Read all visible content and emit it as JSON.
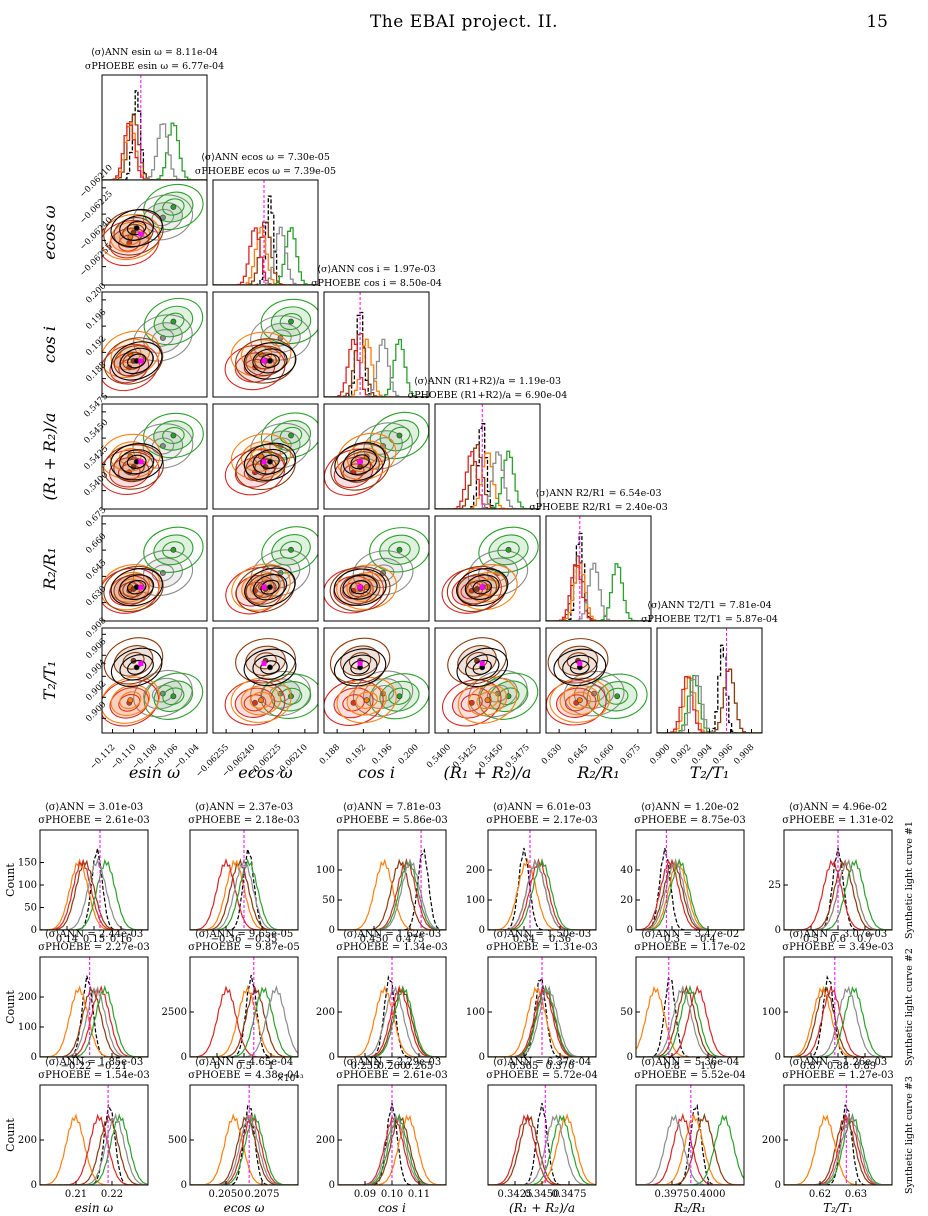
{
  "header": {
    "title": "The EBAI project. II.",
    "page_number": "15"
  },
  "colors": {
    "black": "#000000",
    "brown": "#8b3a0e",
    "orange": "#ff7f0e",
    "red": "#d62728",
    "green": "#2ca02c",
    "lightgreen": "#7fbf6a",
    "gray": "#8c8c8c",
    "magenta": "#ff00ff"
  },
  "chart_data": [
    {
      "type": "corner",
      "parameters": [
        "esin ω",
        "ecos ω",
        "cos i",
        "(R₁ + R₂)/a",
        "R₂/R₁",
        "T₂/T₁"
      ],
      "axis_labels": [
        "esin ω",
        "ecos ω",
        "cos i",
        "(R₁ + R₂)/a",
        "R₂/R₁",
        "T₂/T₁"
      ],
      "ranges": [
        [
          -0.113,
          -0.103
        ],
        [
          -0.0627,
          -0.062
        ],
        [
          0.186,
          0.202
        ],
        [
          0.539,
          0.549
        ],
        [
          0.623,
          0.682
        ],
        [
          0.9,
          0.908
        ]
      ],
      "ticks": [
        [
          "−0.112",
          "−0.110",
          "−0.108",
          "−0.106",
          "−0.104"
        ],
        [
          "−0.06255",
          "−0.06240",
          "−0.06225",
          "−0.06210"
        ],
        [
          "0.188",
          "0.192",
          "0.196",
          "0.200"
        ],
        [
          "0.5400",
          "0.5425",
          "0.5450",
          "0.5475"
        ],
        [
          "0.630",
          "0.645",
          "0.660",
          "0.675"
        ],
        [
          "0.900",
          "0.902",
          "0.904",
          "0.906",
          "0.908"
        ]
      ],
      "diag_stats": [
        {
          "ann_label": "⟨σ⟩ANN esin ω =",
          "ann": "8.11e-04",
          "phoebe_label": "σPHOEBE esin ω =",
          "phoebe": "6.77e-04"
        },
        {
          "ann_label": "⟨σ⟩ANN ecos ω =",
          "ann": "7.30e-05",
          "phoebe_label": "σPHOEBE ecos ω =",
          "phoebe": "7.39e-05"
        },
        {
          "ann_label": "⟨σ⟩ANN cos i =",
          "ann": "1.97e-03",
          "phoebe_label": "σPHOEBE cos i =",
          "phoebe": "8.50e-04"
        },
        {
          "ann_label": "⟨σ⟩ANN (R1+R2)/a =",
          "ann": "1.19e-03",
          "phoebe_label": "σPHOEBE (R1+R2)/a =",
          "phoebe": "6.90e-04"
        },
        {
          "ann_label": "⟨σ⟩ANN R2/R1 =",
          "ann": "6.54e-03",
          "phoebe_label": "σPHOEBE R2/R1 =",
          "phoebe": "2.40e-03"
        },
        {
          "ann_label": "⟨σ⟩ANN T2/T1 =",
          "ann": "7.81e-04",
          "phoebe_label": "σPHOEBE T2/T1 =",
          "phoebe": "5.87e-04"
        }
      ],
      "series": [
        {
          "color": "black",
          "style": "dashed",
          "centers": [
            -0.1097,
            -0.06232,
            0.1915,
            0.5435,
            0.642,
            0.905
          ]
        },
        {
          "color": "brown",
          "centers": [
            -0.11,
            -0.06235,
            0.1915,
            0.543,
            0.641,
            0.9055
          ]
        },
        {
          "color": "orange",
          "centers": [
            -0.1103,
            -0.06238,
            0.1925,
            0.544,
            0.642,
            0.9025
          ]
        },
        {
          "color": "red",
          "centers": [
            -0.1104,
            -0.06242,
            0.1905,
            0.5425,
            0.64,
            0.9023
          ]
        },
        {
          "color": "green",
          "centers": [
            -0.1062,
            -0.06218,
            0.1975,
            0.546,
            0.663,
            0.9028
          ]
        },
        {
          "color": "gray",
          "centers": [
            -0.1072,
            -0.06225,
            0.195,
            0.545,
            0.65,
            0.903
          ]
        }
      ],
      "truth": [
        -0.1093,
        -0.06236,
        0.1915,
        0.5435,
        0.642,
        0.9053
      ]
    },
    {
      "type": "histogram-grid",
      "col_labels": [
        "esin ω",
        "ecos ω",
        "cos i",
        "(R₁ + R₂)/a",
        "R₂/R₁",
        "T₂/T₁"
      ],
      "ylabel": "Count",
      "rows": [
        {
          "side_label": "Synthetic light curve #1",
          "panels": [
            {
              "ann": "3.01e-03",
              "phoebe": "2.61e-03",
              "xlim": [
                0.128,
                0.164
              ],
              "xticks": [
                "0.14",
                "0.15",
                "0.16"
              ],
              "ylim": [
                0,
                190
              ],
              "yticks": [
                "0",
                "50",
                "100",
                "150"
              ],
              "truth": 0.148,
              "centers": [
                0.147,
                0.143,
                0.141,
                0.142,
                0.15,
                0.147
              ]
            },
            {
              "ann": "2.37e-03",
              "phoebe": "2.18e-03",
              "xlim": [
                -0.366,
                -0.342
              ],
              "xticks": [
                "−0.36",
                "−0.35"
              ],
              "ylim": [
                0,
                240
              ],
              "yticks": [],
              "truth": -0.354,
              "centers": [
                -0.353,
                -0.355,
                -0.356,
                -0.358,
                -0.353,
                -0.354
              ]
            },
            {
              "ann": "7.81e-03",
              "phoebe": "5.86e-03",
              "xlim": [
                0.436,
                0.488
              ],
              "xticks": [
                "0.450",
                "0.475"
              ],
              "ylim": [
                0,
                105
              ],
              "yticks": [
                "0",
                "50",
                "100"
              ],
              "truth": 0.476,
              "centers": [
                0.477,
                0.466,
                0.458,
                0.469,
                0.47,
                0.471
              ]
            },
            {
              "ann": "6.01e-03",
              "phoebe": "2.17e-03",
              "xlim": [
                0.336,
                0.372
              ],
              "xticks": [
                "0.34",
                "0.36"
              ],
              "ylim": [
                0,
                240
              ],
              "yticks": [
                "0",
                "100",
                "200"
              ],
              "truth": 0.35,
              "centers": [
                0.348,
                0.352,
                0.349,
                0.353,
                0.354,
                0.352
              ]
            },
            {
              "ann": "1.20e-02",
              "phoebe": "8.75e-03",
              "xlim": [
                0.29,
                0.45
              ],
              "xticks": [
                "0.3",
                "0.4"
              ],
              "ylim": [
                0,
                60
              ],
              "yticks": [
                "0",
                "20",
                "40"
              ],
              "truth": 0.335,
              "centers": [
                0.333,
                0.345,
                0.352,
                0.34,
                0.355,
                0.348
              ]
            },
            {
              "ann": "4.96e-02",
              "phoebe": "1.31e-02",
              "xlim": [
                0.43,
                0.72
              ],
              "xticks": [
                "0.5",
                "0.6",
                "0.7"
              ],
              "ylim": [
                0,
                40
              ],
              "yticks": [
                "0",
                "25"
              ],
              "truth": 0.575,
              "centers": [
                0.575,
                0.59,
                0.6,
                0.56,
                0.62,
                0.6
              ]
            }
          ]
        },
        {
          "side_label": "Synthetic light curve #2",
          "panels": [
            {
              "ann": "2.44e-03",
              "phoebe": "2.27e-03",
              "xlim": [
                -0.229,
                -0.204
              ],
              "xticks": [
                "−0.22",
                "−0.21"
              ],
              "ylim": [
                0,
                230
              ],
              "yticks": [
                "0",
                "100",
                "200"
              ],
              "truth": -0.2175,
              "centers": [
                -0.218,
                -0.217,
                -0.22,
                -0.215,
                -0.214,
                -0.216
              ]
            },
            {
              "ann": "9.65e-05",
              "phoebe": "9.87e-05",
              "xlim": [
                -0.0001,
                0.00122
              ],
              "xticks": [
                "0",
                "0.5",
                "1"
              ],
              "xfactor": "×10⁻³",
              "ylim": [
                0,
                3700
              ],
              "yticks": [
                "0",
                "2500"
              ],
              "truth": 0.00068,
              "centers": [
                0.00065,
                0.0007,
                0.0006,
                0.00035,
                0.0008,
                0.00095
              ]
            },
            {
              "ann": "1.62e-03",
              "phoebe": "1.34e-03",
              "xlim": [
                0.2545,
                0.2685
              ],
              "xticks": [
                "0.255",
                "0.260",
                "0.265"
              ],
              "ylim": [
                0,
                300
              ],
              "yticks": [
                "0",
                "200"
              ],
              "truth": 0.2615,
              "centers": [
                0.2612,
                0.2628,
                0.2605,
                0.2625,
                0.263,
                0.2618
              ]
            },
            {
              "ann": "1.50e-03",
              "phoebe": "1.31e-03",
              "xlim": [
                0.3605,
                0.3745
              ],
              "xticks": [
                "0.365",
                "0.370"
              ],
              "ylim": [
                0,
                150
              ],
              "yticks": [
                "0",
                "100"
              ],
              "truth": 0.3675,
              "centers": [
                0.3673,
                0.3679,
                0.3668,
                0.3677,
                0.368,
                0.3683
              ]
            },
            {
              "ann": "3.47e-02",
              "phoebe": "1.17e-02",
              "xlim": [
                0.74,
                1.02
              ],
              "xticks": [
                "0.8",
                "1.0"
              ],
              "ylim": [
                0,
                60
              ],
              "yticks": [
                "0",
                "50"
              ],
              "truth": 0.825,
              "centers": [
                0.828,
                0.87,
                0.79,
                0.9,
                0.88,
                0.86
              ]
            },
            {
              "ann": "3.07e-03",
              "phoebe": "3.49e-03",
              "xlim": [
                0.864,
                0.898
              ],
              "xticks": [
                "0.87",
                "0.88",
                "0.89"
              ],
              "ylim": [
                0,
                150
              ],
              "yticks": [
                "0",
                "100"
              ],
              "truth": 0.88,
              "centers": [
                0.878,
                0.877,
                0.876,
                0.879,
                0.886,
                0.884
              ]
            }
          ]
        },
        {
          "side_label": "Synthetic light curve #3",
          "panels": [
            {
              "ann": "1.85e-03",
              "phoebe": "1.54e-03",
              "xlim": [
                0.2045,
                0.2275
              ],
              "xticks": [
                "0.21",
                "0.22"
              ],
              "ylim": [
                0,
                300
              ],
              "yticks": [
                "0",
                "200"
              ],
              "truth": 0.219,
              "centers": [
                0.2193,
                0.2192,
                0.212,
                0.217,
                0.2215,
                0.2205
              ]
            },
            {
              "ann": "4.65e-04",
              "phoebe": "4.38e-04",
              "xlim": [
                0.2043,
                0.2085
              ],
              "xticks": [
                "0.2050",
                "0.2075"
              ],
              "ylim": [
                0,
                850
              ],
              "yticks": [
                "0",
                "500"
              ],
              "truth": 0.2066,
              "centers": [
                0.2066,
                0.2065,
                0.206,
                0.2067,
                0.2068,
                0.2066
              ]
            },
            {
              "ann": "2.29e-03",
              "phoebe": "2.61e-03",
              "xlim": [
                0.085,
                0.112
              ],
              "xticks": [
                "0.09",
                "0.10",
                "0.11"
              ],
              "ylim": [
                0,
                300
              ],
              "yticks": [
                "0",
                "200"
              ],
              "truth": 0.0985,
              "centers": [
                0.0985,
                0.1005,
                0.1025,
                0.099,
                0.1,
                0.0995
              ]
            },
            {
              "ann": "6.37e-04",
              "phoebe": "5.72e-04",
              "xlim": [
                0.3417,
                0.3483
              ],
              "xticks": [
                "0.3425",
                "0.3450",
                "0.3475"
              ],
              "ylim": [
                0,
                300
              ],
              "yticks": [],
              "truth": 0.3452,
              "centers": [
                0.345,
                0.3442,
                0.3465,
                0.344,
                0.3462,
                0.3458
              ]
            },
            {
              "ann": "5.36e-04",
              "phoebe": "5.52e-04",
              "xlim": [
                0.3952,
                0.4017
              ],
              "xticks": [
                "0.3975",
                "0.4000"
              ],
              "ylim": [
                0,
                680
              ],
              "yticks": [],
              "truth": 0.3985,
              "centers": [
                0.3988,
                0.3993,
                0.3987,
                0.398,
                0.4005,
                0.3975
              ]
            },
            {
              "ann": "1.26e-03",
              "phoebe": "1.27e-03",
              "xlim": [
                0.612,
                0.638
              ],
              "xticks": [
                "0.62",
                "0.63"
              ],
              "ylim": [
                0,
                320
              ],
              "yticks": [
                "0",
                "200"
              ],
              "truth": 0.627,
              "centers": [
                0.627,
                0.6268,
                0.622,
                0.6275,
                0.6285,
                0.628
              ]
            }
          ]
        }
      ]
    }
  ]
}
